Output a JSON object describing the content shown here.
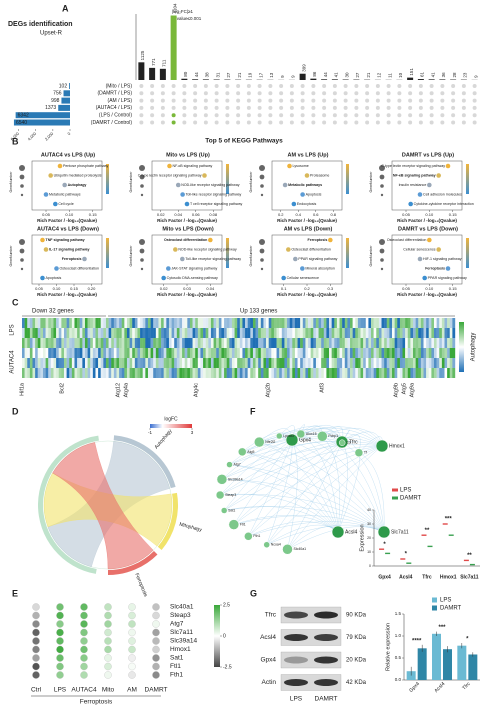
{
  "panel_a": {
    "label": "A",
    "title": "DEGs identification",
    "subtitle": "Upset-R",
    "legend": [
      "|log₂FC|≥1",
      "Q value≤0.001"
    ],
    "sets": [
      {
        "name": "(Mito / LPS)",
        "size": 102
      },
      {
        "name": "(DAMRT / LPS)",
        "size": 756
      },
      {
        "name": "(AM / LPS)",
        "size": 998
      },
      {
        "name": "(AUTAC4 / LPS)",
        "size": 1373
      },
      {
        "name": "(LPS / Control)",
        "size": 6342
      },
      {
        "name": "(DAMRT / Control)",
        "size": 6540
      }
    ],
    "set_xlim": [
      0,
      7000
    ],
    "set_ticks": [
      {
        "value": 6000,
        "label": "6,000"
      },
      {
        "value": 4000,
        "label": "4,000"
      },
      {
        "value": 2000,
        "label": "2,000"
      },
      0
    ],
    "intersections": [
      1125,
      771,
      711,
      4104,
      80,
      44,
      38,
      31,
      27,
      21,
      19,
      17,
      13,
      9,
      9,
      399,
      86,
      44,
      41,
      30,
      27,
      21,
      12,
      11,
      10,
      151,
      61,
      41,
      36,
      28,
      23,
      9
    ],
    "highlight": 3,
    "ylim": [
      0,
      4200
    ]
  },
  "panel_b": {
    "label": "B",
    "title": "Top 5 of KEGG Pathways",
    "x_label": "Rich Factor / -log₁₀(Qvalue)",
    "size_label": "GeneNumber",
    "plots": [
      {
        "title": "AUTAC4 vs LPS (Up)",
        "xlim": [
          0.02,
          0.17
        ],
        "xticks": [
          0.05,
          {
            "value": 0.1,
            "label": "0.10"
          },
          0.15
        ],
        "pathways": [
          {
            "name": "Pentose phosphate pathway",
            "x": 0.08,
            "highlight": false
          },
          {
            "name": "Ubiquitin mediated proteolysis",
            "x": 0.06,
            "highlight": false
          },
          {
            "name": "Autophagy",
            "x": 0.09,
            "highlight": true
          },
          {
            "name": "Metabolic pathways",
            "x": 0.05,
            "highlight": false
          },
          {
            "name": "Cell cycle",
            "x": 0.07,
            "highlight": false
          }
        ]
      },
      {
        "title": "Mito vs LPS (Up)",
        "xlim": [
          0.01,
          0.09
        ],
        "xticks": [
          0.02,
          0.04,
          0.06,
          0.08
        ],
        "pathways": [
          {
            "name": "NF-κB signaling pathway",
            "x": 0.03,
            "highlight": false
          },
          {
            "name": "C-type lectin receptor signaling pathway",
            "x": 0.07,
            "highlight": false
          },
          {
            "name": "NOD-like receptor signaling pathway",
            "x": 0.04,
            "highlight": false
          },
          {
            "name": "Toll-like receptor signaling pathway",
            "x": 0.045,
            "highlight": false
          },
          {
            "name": "T cell receptor signaling pathway",
            "x": 0.05,
            "highlight": false
          }
        ]
      },
      {
        "title": "AM vs LPS (Up)",
        "xlim": [
          0.1,
          0.9
        ],
        "xticks": [
          0.2,
          0.4,
          0.6,
          0.8
        ],
        "pathways": [
          {
            "name": "Lysosome",
            "x": 0.3,
            "highlight": false
          },
          {
            "name": "Proteasome",
            "x": 0.5,
            "highlight": false
          },
          {
            "name": "Metabolic pathways",
            "x": 0.25,
            "highlight": true
          },
          {
            "name": "Apoptosis",
            "x": 0.45,
            "highlight": false
          },
          {
            "name": "Endocytosis",
            "x": 0.35,
            "highlight": false
          }
        ]
      },
      {
        "title": "DAMRT vs LPS (Up)",
        "xlim": [
          0.02,
          0.17
        ],
        "xticks": [
          0.05,
          {
            "value": 0.1,
            "label": "0.10"
          },
          0.15
        ],
        "pathways": [
          {
            "name": "C-type lectin receptor signaling pathway",
            "x": 0.14,
            "highlight": false
          },
          {
            "name": "NF-κB signaling pathway",
            "x": 0.12,
            "highlight": true
          },
          {
            "name": "Insulin resistance",
            "x": 0.1,
            "highlight": false
          },
          {
            "name": "Cell adhesion molecules",
            "x": 0.08,
            "highlight": false
          },
          {
            "name": "Cytokine-cytokine receptor interaction",
            "x": 0.06,
            "highlight": false
          }
        ]
      },
      {
        "title": "AUTAC4 vs LPS (Down)",
        "xlim": [
          0.03,
          0.23
        ],
        "xticks": [
          0.05,
          {
            "value": 0.1,
            "label": "0.10"
          },
          0.15,
          {
            "value": 0.2,
            "label": "0.20"
          }
        ],
        "pathways": [
          {
            "name": "TNF signaling pathway",
            "x": 0.06,
            "highlight": true
          },
          {
            "name": "IL-17 signaling pathway",
            "x": 0.07,
            "highlight": true
          },
          {
            "name": "Ferroptosis",
            "x": 0.18,
            "highlight": true
          },
          {
            "name": "Osteoclast differentiation",
            "x": 0.1,
            "highlight": false
          },
          {
            "name": "Apoptosis",
            "x": 0.06,
            "highlight": false
          }
        ]
      },
      {
        "title": "Mito vs LPS (Down)",
        "xlim": [
          0.015,
          0.045
        ],
        "xticks": [
          0.02,
          0.03,
          0.04
        ],
        "pathways": [
          {
            "name": "Osteoclast differentiation",
            "x": 0.04,
            "highlight": true
          },
          {
            "name": "NOD-like receptor signaling pathway",
            "x": 0.025,
            "highlight": false
          },
          {
            "name": "Toll-like receptor signaling pathway",
            "x": 0.028,
            "highlight": false
          },
          {
            "name": "JAK-STAT signaling pathway",
            "x": 0.022,
            "highlight": false
          },
          {
            "name": "Cytosolic DNA-sensing pathway",
            "x": 0.02,
            "highlight": false
          }
        ]
      },
      {
        "title": "AM vs LPS (Down)",
        "xlim": [
          0.05,
          0.35
        ],
        "xticks": [
          0.1,
          0.2,
          0.3
        ],
        "pathways": [
          {
            "name": "Ferroptosis",
            "x": 0.3,
            "highlight": true
          },
          {
            "name": "Osteoclast differentiation",
            "x": 0.12,
            "highlight": false
          },
          {
            "name": "PPAR signaling pathway",
            "x": 0.15,
            "highlight": false
          },
          {
            "name": "Mineral absorption",
            "x": 0.18,
            "highlight": false
          },
          {
            "name": "Cellular senescence",
            "x": 0.1,
            "highlight": false
          }
        ]
      },
      {
        "title": "DAMRT vs LPS (Down)",
        "xlim": [
          0.02,
          0.17
        ],
        "xticks": [
          0.05,
          {
            "value": 0.1,
            "label": "0.10"
          },
          0.15
        ],
        "pathways": [
          {
            "name": "Osteoclast differentiation",
            "x": 0.1,
            "highlight": false
          },
          {
            "name": "Cellular senescence",
            "x": 0.12,
            "highlight": false
          },
          {
            "name": "HIF-1 signaling pathway",
            "x": 0.08,
            "highlight": false
          },
          {
            "name": "Ferroptosis",
            "x": 0.14,
            "highlight": true
          },
          {
            "name": "PPAR signaling pathway",
            "x": 0.09,
            "highlight": false
          }
        ]
      }
    ]
  },
  "panel_c": {
    "label": "C",
    "down": "Down 32 genes",
    "up": "Up 133 genes",
    "rows": [
      "LPS",
      "AUTAC4"
    ],
    "bar_title": "Autophagy",
    "genes": [
      "Hif1a",
      "Bcl2",
      "Atg12",
      "Atg4a",
      "Atg4c",
      "Atg2b",
      "Atf3",
      "Atg9b",
      "Atg5",
      "Atg9a"
    ]
  },
  "panel_d": {
    "label": "D",
    "legend_title": "logFC",
    "legend_ticks": [
      -1,
      3
    ],
    "pathways": [
      "Autophagy",
      "Mitophagy",
      "Ferroptosis"
    ]
  },
  "panel_e": {
    "label": "E",
    "title": "Ferroptosis",
    "groups": [
      "Ctrl",
      "LPS",
      "AUTAC4",
      "Mito",
      "AM",
      "DAMRT"
    ],
    "genes": [
      "Slc40a1",
      "Steap3",
      "Atg7",
      "Slc7a11",
      "Slc39a14",
      "Hmox1",
      "Sat1",
      "Ftl1",
      "Fth1"
    ],
    "values": [
      [
        -0.5,
        1.8,
        2.0,
        0.8,
        0.3,
        -0.8
      ],
      [
        -1.0,
        2.2,
        1.9,
        1.0,
        0.5,
        -0.5
      ],
      [
        -1.5,
        1.5,
        2.1,
        1.2,
        0.8,
        0.2
      ],
      [
        -2.0,
        2.3,
        1.6,
        0.6,
        0.2,
        -1.2
      ],
      [
        -1.8,
        2.0,
        1.4,
        0.9,
        0.4,
        -0.9
      ],
      [
        -1.6,
        2.4,
        1.8,
        1.1,
        0.7,
        -0.6
      ],
      [
        -1.2,
        1.9,
        1.5,
        0.3,
        -0.2,
        -1.4
      ],
      [
        -2.2,
        1.6,
        1.2,
        0.5,
        0.1,
        -1.0
      ],
      [
        -2.0,
        1.4,
        1.0,
        0.2,
        -0.3,
        -1.5
      ]
    ],
    "clim": [
      -2.5,
      2.5
    ],
    "cticks": [
      2.5,
      0,
      -2.5
    ]
  },
  "panel_f": {
    "label": "F",
    "nodes": [
      "Gpx4",
      "Tfrc",
      "Hmox1",
      "Acsl4",
      "Slc7a11",
      "Slc40a1",
      "Ncoa4",
      "Fth1",
      "Ftl1",
      "Sat1",
      "Steap3",
      "Slc39a14",
      "Atg7",
      "Atg5",
      "Nfe2l2",
      "Lpcat3",
      "Alox15",
      "Pcbp1",
      "Cp",
      "Tf"
    ],
    "chart": {
      "y_label": "Expression",
      "categories": [
        "Gpx4",
        "Acsl4",
        "Tfrc",
        "Hmox1",
        "Slc7a11"
      ],
      "series": [
        {
          "name": "LPS",
          "color": "#e04a4a",
          "values": [
            12,
            5,
            22,
            30,
            4
          ]
        },
        {
          "name": "DAMRT",
          "color": "#3aa050",
          "values": [
            9,
            2,
            14,
            22,
            1
          ]
        }
      ],
      "significance": [
        "*",
        "*",
        "**",
        "***",
        "**"
      ],
      "ylim": [
        0,
        40
      ],
      "yticks": [
        0,
        10,
        20,
        30,
        40
      ]
    }
  },
  "panel_g": {
    "label": "G",
    "blot_rows": [
      {
        "name": "Tfrc",
        "size": "90 KDa"
      },
      {
        "name": "Acsl4",
        "size": "79 KDa"
      },
      {
        "name": "Gpx4",
        "size": "20 KDa"
      },
      {
        "name": "Actin",
        "size": "42 KDa"
      }
    ],
    "lanes": [
      "LPS",
      "DAMRT"
    ],
    "chart": {
      "y_label": "Relative expression",
      "categories": [
        "Gpx4",
        "Acsl4",
        "Tfrc"
      ],
      "series": [
        {
          "name": "LPS",
          "color": "#6bbad3",
          "values": [
            0.2,
            1.05,
            0.78
          ],
          "errors": [
            0.1,
            0.05,
            0.06
          ]
        },
        {
          "name": "DAMRT",
          "color": "#2f86a6",
          "values": [
            0.72,
            0.7,
            0.58
          ],
          "errors": [
            0.08,
            0.07,
            0.05
          ]
        }
      ],
      "significance": [
        "****",
        "***",
        "*"
      ],
      "ylim": [
        0,
        1.5
      ],
      "yticks": [
        {
          "value": 0,
          "label": "0.0"
        },
        0.5,
        {
          "value": 1,
          "label": "1.0"
        },
        1.5
      ]
    }
  }
}
